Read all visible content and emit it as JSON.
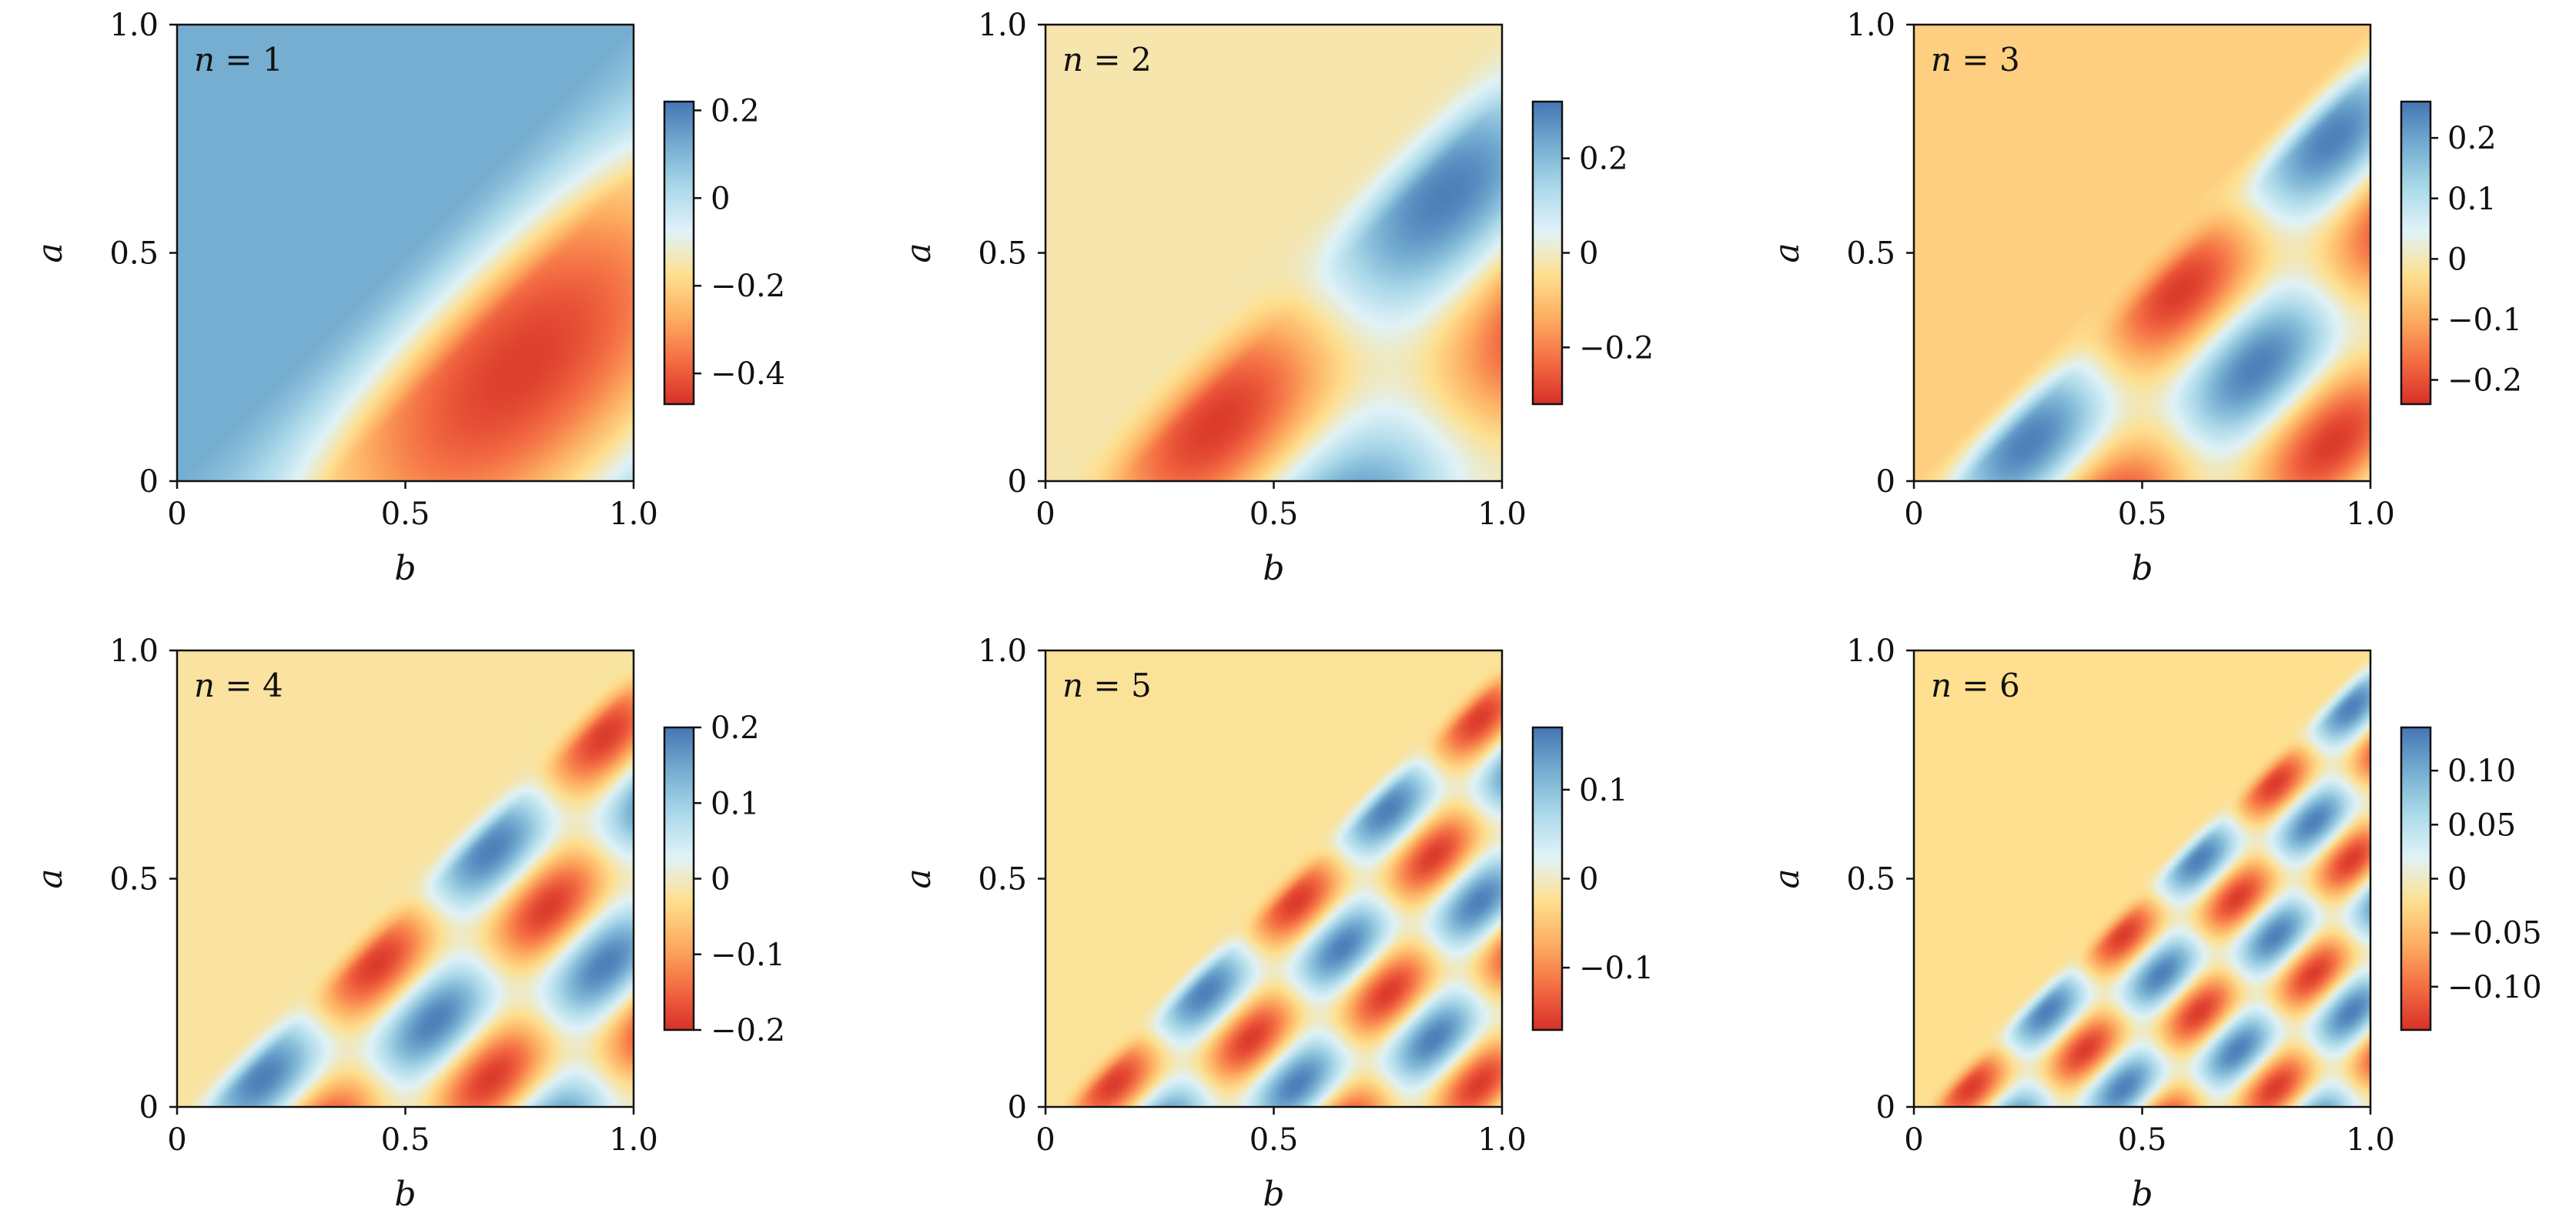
{
  "chart_data": [
    {
      "type": "heatmap",
      "label": {
        "var": "n",
        "value": "1"
      },
      "xlabel": "b",
      "ylabel": "a",
      "xlim": [
        0,
        1
      ],
      "ylim": [
        0,
        1
      ],
      "xticks": [
        0,
        0.5,
        1.0
      ],
      "xtick_labels": [
        "0",
        "0.5",
        "1.0"
      ],
      "yticks": [
        0,
        0.5,
        1.0
      ],
      "ytick_labels": [
        "0",
        "0.5",
        "1.0"
      ],
      "colorbar": {
        "range": [
          -0.47,
          0.22
        ],
        "ticks": [
          0.2,
          0,
          -0.2,
          -0.4
        ],
        "tick_labels": [
          "0.2",
          "0",
          "−0.2",
          "−0.4"
        ]
      },
      "colormap": [
        "#d73027",
        "#f46d43",
        "#fdae61",
        "#fee090",
        "#e0f3f8",
        "#abd9e9",
        "#74add1",
        "#4575b4"
      ],
      "mode": 1
    },
    {
      "type": "heatmap",
      "label": {
        "var": "n",
        "value": "2"
      },
      "xlabel": "b",
      "ylabel": "a",
      "xlim": [
        0,
        1
      ],
      "ylim": [
        0,
        1
      ],
      "xticks": [
        0,
        0.5,
        1.0
      ],
      "xtick_labels": [
        "0",
        "0.5",
        "1.0"
      ],
      "yticks": [
        0,
        0.5,
        1.0
      ],
      "ytick_labels": [
        "0",
        "0.5",
        "1.0"
      ],
      "colorbar": {
        "range": [
          -0.32,
          0.32
        ],
        "ticks": [
          0.2,
          0,
          -0.2
        ],
        "tick_labels": [
          "0.2",
          "0",
          "−0.2"
        ]
      },
      "colormap": [
        "#d73027",
        "#f46d43",
        "#fdae61",
        "#fee090",
        "#e0f3f8",
        "#abd9e9",
        "#74add1",
        "#4575b4"
      ],
      "mode": 2
    },
    {
      "type": "heatmap",
      "label": {
        "var": "n",
        "value": "3"
      },
      "xlabel": "b",
      "ylabel": "a",
      "xlim": [
        0,
        1
      ],
      "ylim": [
        0,
        1
      ],
      "xticks": [
        0,
        0.5,
        1.0
      ],
      "xtick_labels": [
        "0",
        "0.5",
        "1.0"
      ],
      "yticks": [
        0,
        0.5,
        1.0
      ],
      "ytick_labels": [
        "0",
        "0.5",
        "1.0"
      ],
      "colorbar": {
        "range": [
          -0.24,
          0.26
        ],
        "ticks": [
          0.2,
          0.1,
          0,
          -0.1,
          -0.2
        ],
        "tick_labels": [
          "0.2",
          "0.1",
          "0",
          "−0.1",
          "−0.2"
        ]
      },
      "colormap": [
        "#d73027",
        "#f46d43",
        "#fdae61",
        "#fee090",
        "#e0f3f8",
        "#abd9e9",
        "#74add1",
        "#4575b4"
      ],
      "mode": 3
    },
    {
      "type": "heatmap",
      "label": {
        "var": "n",
        "value": "4"
      },
      "xlabel": "b",
      "ylabel": "a",
      "xlim": [
        0,
        1
      ],
      "ylim": [
        0,
        1
      ],
      "xticks": [
        0,
        0.5,
        1.0
      ],
      "xtick_labels": [
        "0",
        "0.5",
        "1.0"
      ],
      "yticks": [
        0,
        0.5,
        1.0
      ],
      "ytick_labels": [
        "0",
        "0.5",
        "1.0"
      ],
      "colorbar": {
        "range": [
          -0.2,
          0.2
        ],
        "ticks": [
          0.2,
          0.1,
          0,
          -0.1,
          -0.2
        ],
        "tick_labels": [
          "0.2",
          "0.1",
          "0",
          "−0.1",
          "−0.2"
        ]
      },
      "colormap": [
        "#d73027",
        "#f46d43",
        "#fdae61",
        "#fee090",
        "#e0f3f8",
        "#abd9e9",
        "#74add1",
        "#4575b4"
      ],
      "mode": 4
    },
    {
      "type": "heatmap",
      "label": {
        "var": "n",
        "value": "5"
      },
      "xlabel": "b",
      "ylabel": "a",
      "xlim": [
        0,
        1
      ],
      "ylim": [
        0,
        1
      ],
      "xticks": [
        0,
        0.5,
        1.0
      ],
      "xtick_labels": [
        "0",
        "0.5",
        "1.0"
      ],
      "yticks": [
        0,
        0.5,
        1.0
      ],
      "ytick_labels": [
        "0",
        "0.5",
        "1.0"
      ],
      "colorbar": {
        "range": [
          -0.17,
          0.17
        ],
        "ticks": [
          0.1,
          0,
          -0.1
        ],
        "tick_labels": [
          "0.1",
          "0",
          "−0.1"
        ]
      },
      "colormap": [
        "#d73027",
        "#f46d43",
        "#fdae61",
        "#fee090",
        "#e0f3f8",
        "#abd9e9",
        "#74add1",
        "#4575b4"
      ],
      "mode": 5
    },
    {
      "type": "heatmap",
      "label": {
        "var": "n",
        "value": "6"
      },
      "xlabel": "b",
      "ylabel": "a",
      "xlim": [
        0,
        1
      ],
      "ylim": [
        0,
        1
      ],
      "xticks": [
        0,
        0.5,
        1.0
      ],
      "xtick_labels": [
        "0",
        "0.5",
        "1.0"
      ],
      "yticks": [
        0,
        0.5,
        1.0
      ],
      "ytick_labels": [
        "0",
        "0.5",
        "1.0"
      ],
      "colorbar": {
        "range": [
          -0.14,
          0.14
        ],
        "ticks": [
          0.1,
          0.05,
          0,
          -0.05,
          -0.1
        ],
        "tick_labels": [
          "0.10",
          "0.05",
          "0",
          "−0.05",
          "−0.10"
        ]
      },
      "colormap": [
        "#d73027",
        "#f46d43",
        "#fdae61",
        "#fee090",
        "#e0f3f8",
        "#abd9e9",
        "#74add1",
        "#4575b4"
      ],
      "mode": 6
    }
  ]
}
